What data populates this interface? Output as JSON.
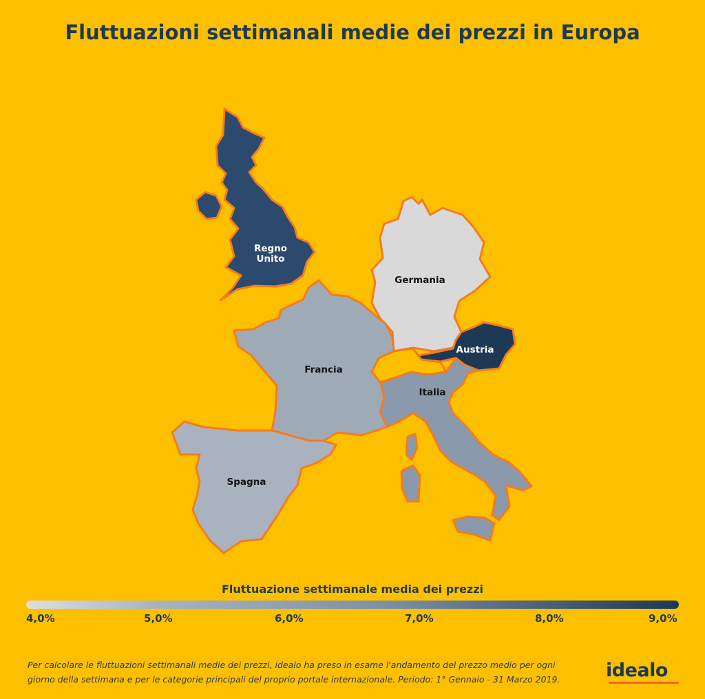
{
  "title": "Fluttuazioni settimanali medie dei prezzi in Europa",
  "countries": [
    {
      "name": "Regno Unito",
      "label_lines": [
        "Regno",
        "Unito"
      ],
      "fill": "#2b4a6d"
    },
    {
      "name": "Germania",
      "label_lines": [
        "Germania"
      ],
      "fill": "#d9d9d9"
    },
    {
      "name": "Austria",
      "label_lines": [
        "Austria"
      ],
      "fill": "#1d3956"
    },
    {
      "name": "Francia",
      "label_lines": [
        "Francia"
      ],
      "fill": "#9eabb7"
    },
    {
      "name": "Italia",
      "label_lines": [
        "Italia"
      ],
      "fill": "#8a99ab"
    },
    {
      "name": "Spagna",
      "label_lines": [
        "Spagna"
      ],
      "fill": "#a8b3bf"
    }
  ],
  "colors": {
    "background": "#fdc000",
    "border": "#f47b20",
    "title": "#1f3a4c",
    "switzerland": "#fdc000"
  },
  "legend": {
    "title": "Fluttuazione settimanale media dei prezzi",
    "ticks": [
      "4,0%",
      "5,0%",
      "6,0%",
      "7,0%",
      "8,0%",
      "9,0%"
    ],
    "range": [
      4.0,
      9.0
    ],
    "color_low": "#dedede",
    "color_high": "#1d3956"
  },
  "footnote": {
    "line1": "Per calcolare le fluttuazioni settimanali medie dei prezzi, idealo ha preso in esame l'andamento del prezzo medio per ogni",
    "line2": "giorno della settimana e per le categorie principali del proprio portale internazionale. Periodo: 1° Gennaio - 31 Marzo 2019."
  },
  "logo": {
    "text": "idealo"
  }
}
